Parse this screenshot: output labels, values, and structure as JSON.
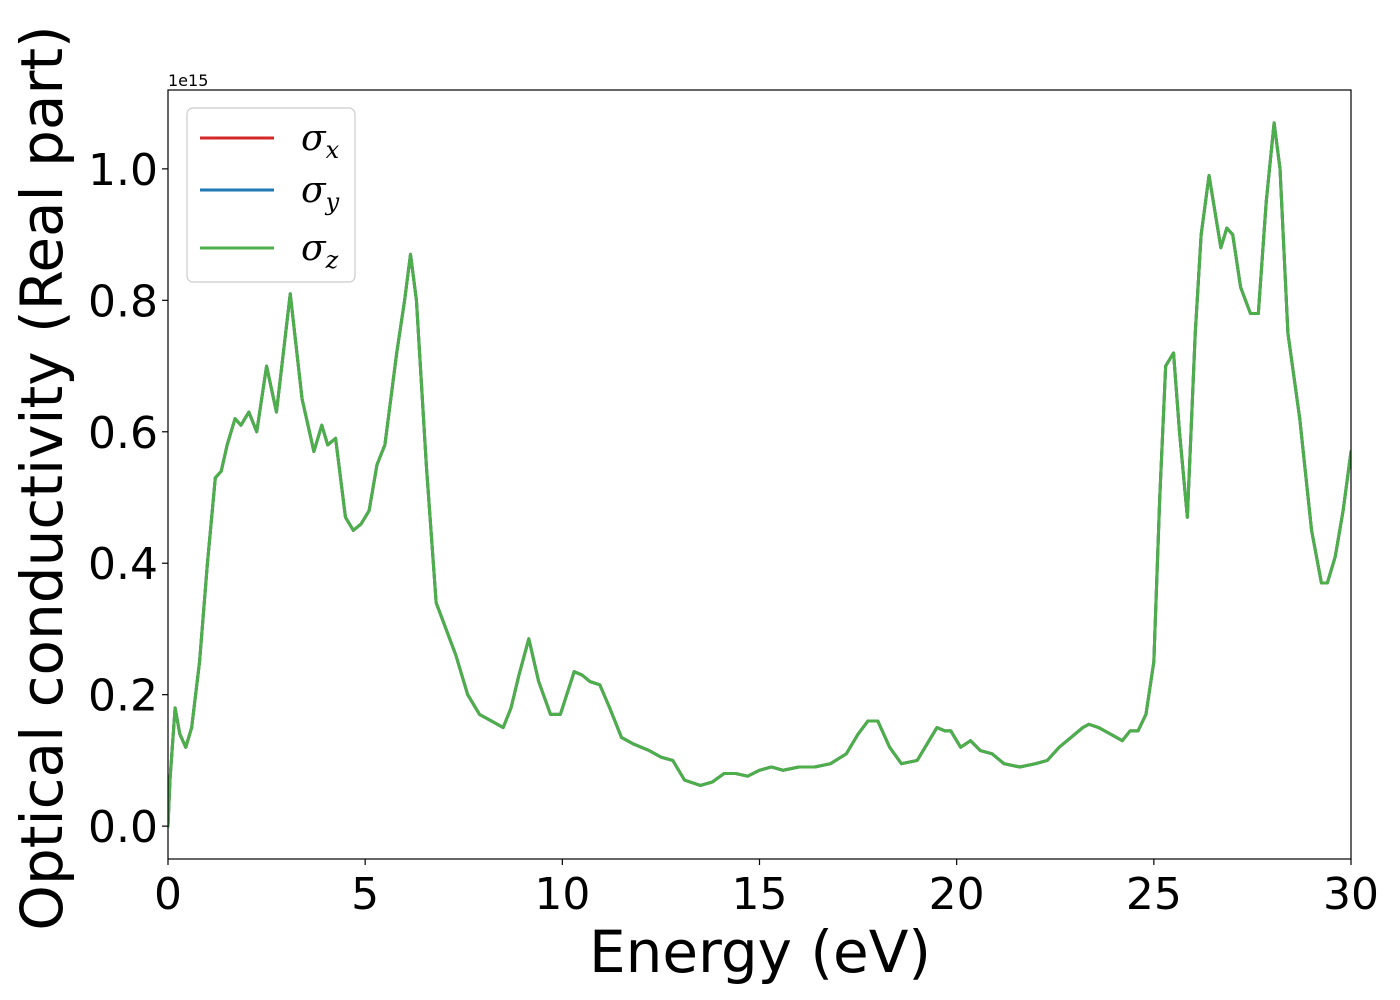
{
  "chart_data": {
    "type": "line",
    "title": "",
    "xlabel": "Energy (eV)",
    "ylabel": "Optical conductivity (Real part)",
    "y_offset_label": "1e15",
    "xlim": [
      0,
      30
    ],
    "ylim": [
      -0.05,
      1.12
    ],
    "x_ticks": [
      0,
      5,
      10,
      15,
      20,
      25,
      30
    ],
    "x_tick_labels": [
      "0",
      "5",
      "10",
      "15",
      "20",
      "25",
      "30"
    ],
    "y_ticks": [
      0.0,
      0.2,
      0.4,
      0.6,
      0.8,
      1.0
    ],
    "y_tick_labels": [
      "0.0",
      "0.2",
      "0.4",
      "0.6",
      "0.8",
      "1.0"
    ],
    "grid": false,
    "legend_position": "top-left",
    "series": [
      {
        "name": "x",
        "legend_symbol": "σ",
        "color": "#d62728"
      },
      {
        "name": "y",
        "legend_symbol": "σ",
        "color": "#1f77b4"
      },
      {
        "name": "z",
        "legend_symbol": "σ",
        "color": "#4daf4a"
      }
    ],
    "x": [
      0.0,
      0.05,
      0.18,
      0.3,
      0.45,
      0.6,
      0.8,
      1.0,
      1.2,
      1.35,
      1.5,
      1.7,
      1.85,
      2.05,
      2.25,
      2.5,
      2.75,
      3.1,
      3.4,
      3.7,
      3.9,
      4.05,
      4.25,
      4.5,
      4.7,
      4.9,
      5.1,
      5.3,
      5.5,
      5.8,
      6.0,
      6.15,
      6.3,
      6.55,
      6.8,
      7.05,
      7.3,
      7.6,
      7.9,
      8.2,
      8.5,
      8.7,
      8.9,
      9.15,
      9.4,
      9.7,
      9.95,
      10.3,
      10.5,
      10.7,
      10.95,
      11.2,
      11.5,
      11.8,
      12.2,
      12.5,
      12.8,
      13.1,
      13.5,
      13.8,
      14.1,
      14.4,
      14.7,
      15.0,
      15.3,
      15.6,
      16.0,
      16.4,
      16.8,
      17.2,
      17.5,
      17.75,
      18.0,
      18.3,
      18.6,
      19.0,
      19.3,
      19.5,
      19.7,
      19.85,
      20.1,
      20.35,
      20.6,
      20.9,
      21.2,
      21.6,
      22.0,
      22.3,
      22.6,
      22.9,
      23.2,
      23.35,
      23.6,
      23.9,
      24.2,
      24.4,
      24.6,
      24.8,
      25.0,
      25.15,
      25.3,
      25.5,
      25.65,
      25.85,
      26.05,
      26.2,
      26.4,
      26.7,
      26.85,
      27.0,
      27.2,
      27.45,
      27.65,
      27.85,
      28.05,
      28.2,
      28.4,
      28.7,
      29.0,
      29.25,
      29.4,
      29.6,
      29.8,
      30.0
    ],
    "values": [
      0.0,
      0.07,
      0.18,
      0.14,
      0.12,
      0.15,
      0.25,
      0.4,
      0.53,
      0.54,
      0.58,
      0.62,
      0.61,
      0.63,
      0.6,
      0.7,
      0.63,
      0.81,
      0.65,
      0.57,
      0.61,
      0.58,
      0.59,
      0.47,
      0.45,
      0.46,
      0.48,
      0.55,
      0.58,
      0.72,
      0.8,
      0.87,
      0.8,
      0.55,
      0.34,
      0.3,
      0.26,
      0.2,
      0.17,
      0.16,
      0.15,
      0.18,
      0.23,
      0.285,
      0.22,
      0.17,
      0.17,
      0.235,
      0.23,
      0.22,
      0.215,
      0.18,
      0.135,
      0.125,
      0.115,
      0.105,
      0.1,
      0.07,
      0.062,
      0.067,
      0.08,
      0.08,
      0.076,
      0.085,
      0.09,
      0.085,
      0.09,
      0.09,
      0.095,
      0.11,
      0.14,
      0.16,
      0.16,
      0.12,
      0.095,
      0.1,
      0.13,
      0.15,
      0.145,
      0.145,
      0.12,
      0.13,
      0.115,
      0.11,
      0.095,
      0.09,
      0.095,
      0.1,
      0.12,
      0.135,
      0.15,
      0.155,
      0.15,
      0.14,
      0.13,
      0.145,
      0.145,
      0.17,
      0.25,
      0.5,
      0.7,
      0.72,
      0.6,
      0.47,
      0.75,
      0.9,
      0.99,
      0.88,
      0.91,
      0.9,
      0.82,
      0.78,
      0.78,
      0.95,
      1.07,
      1.0,
      0.75,
      0.62,
      0.45,
      0.37,
      0.37,
      0.41,
      0.48,
      0.57
    ]
  }
}
